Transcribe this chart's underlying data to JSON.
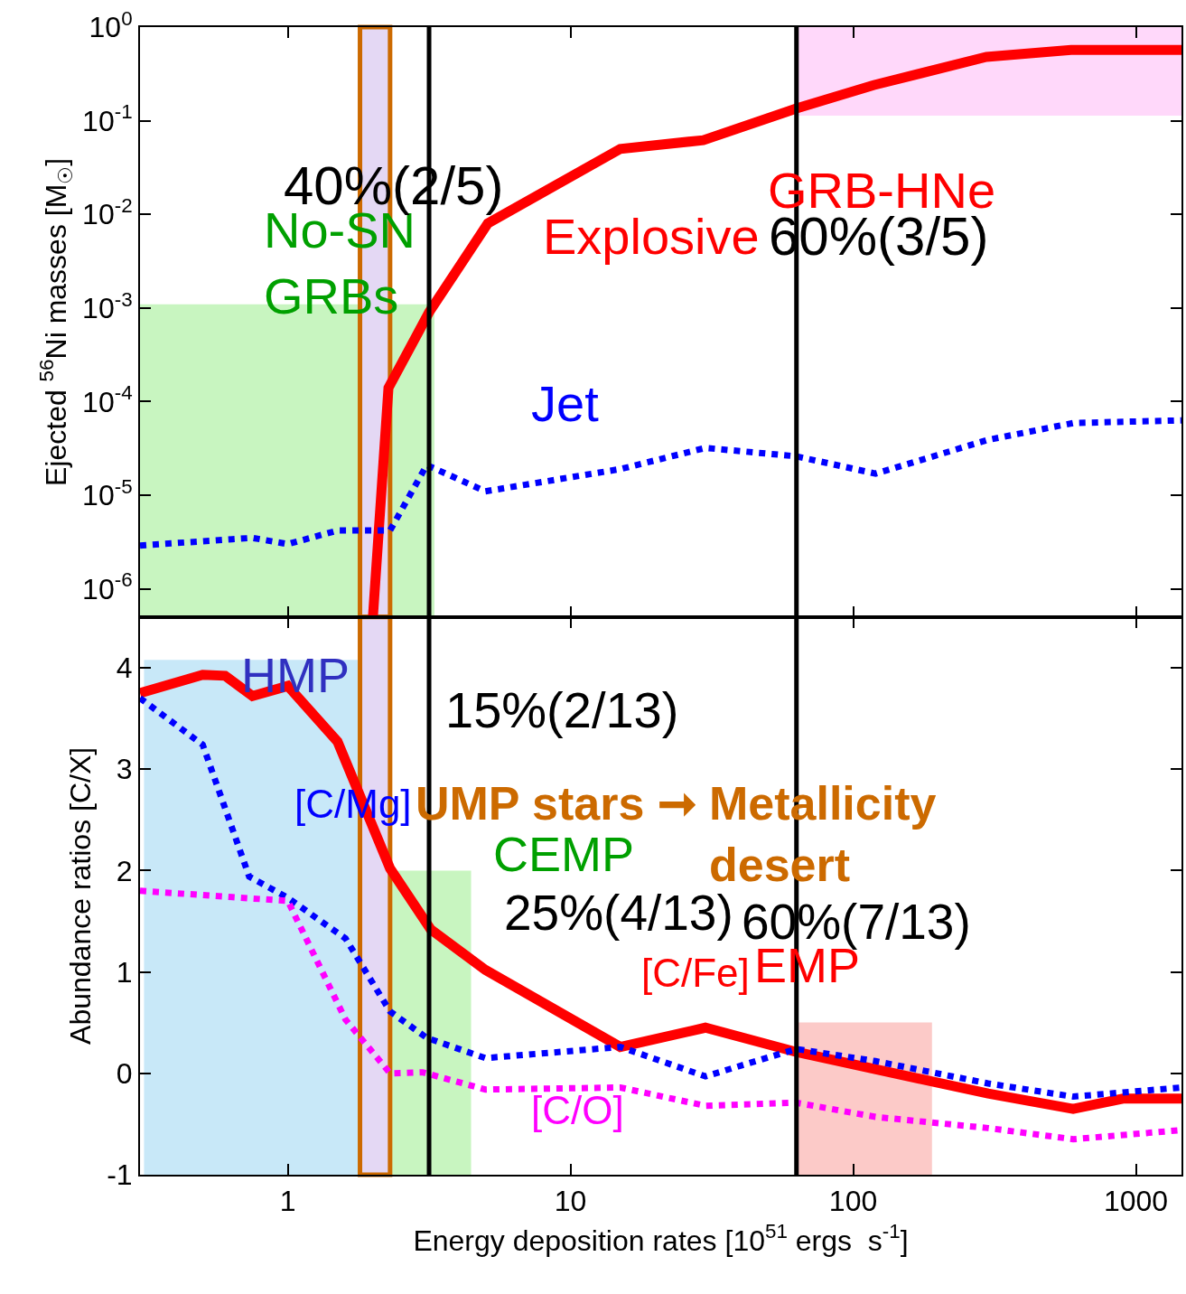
{
  "chart_data": [
    {
      "type": "line",
      "ylabel": "Ejected $^{56}$Ni masses [M$_{☉}$]",
      "log": "xy",
      "xlim": [
        0.3,
        1450
      ],
      "ylim": [
        5e-07,
        1
      ],
      "tick_labels": "y",
      "marker": "none",
      "xticks": [
        1,
        10,
        100,
        1000
      ],
      "yticks": [
        {
          "value": 1e-06,
          "label": "10$^{-6}$"
        },
        {
          "value": 1e-05,
          "label": "10$^{-5}$"
        },
        {
          "value": 0.0001,
          "label": "10$^{-4}$"
        },
        {
          "value": 0.001,
          "label": "10$^{-3}$"
        },
        {
          "value": 0.01,
          "label": "10$^{-2}$"
        },
        {
          "value": 0.1,
          "label": "10$^{-1}$"
        },
        {
          "value": 1,
          "label": "10$^{0}$"
        }
      ],
      "series": [
        {
          "name": "Explosive",
          "color": "#ff0000",
          "line_style": "solid",
          "x": [
            2.0,
            2.27,
            3.16,
            5.1,
            15,
            29.5,
            63,
            118,
            296,
            590,
            1450
          ],
          "values": [
            5e-07,
            0.00014,
            0.0009,
            0.008,
            0.05,
            0.062,
            0.135,
            0.24,
            0.48,
            0.57,
            0.57
          ]
        },
        {
          "name": "Jet",
          "color": "#0000ff",
          "line_style": "dotted",
          "x": [
            0.3,
            0.75,
            1.0,
            1.5,
            2.3,
            3.1,
            5,
            15,
            30,
            63,
            120,
            300,
            600,
            1450
          ],
          "values": [
            2.9e-06,
            3.5e-06,
            3e-06,
            4.2e-06,
            4.2e-06,
            2.1e-05,
            1.1e-05,
            1.9e-05,
            3.2e-05,
            2.6e-05,
            1.7e-05,
            3.9e-05,
            5.9e-05,
            6.3e-05
          ]
        }
      ],
      "ref_lines": [
        {
          "axis": "x",
          "value": 3.16,
          "color": "#000000"
        },
        {
          "axis": "x",
          "value": 63,
          "color": "#000000"
        }
      ],
      "bands": [
        {
          "axis": "x",
          "from": 0.3,
          "to": 3.3,
          "color": "#c8f5c0",
          "label": "No-SN\nGRBs"
        },
        {
          "axis": "x",
          "from": 63,
          "to": 1450,
          "color": "#ffd8fa",
          "label": "GRB-HNe"
        },
        {
          "axis": "x",
          "from": 1.8,
          "to": 2.3,
          "color": "#e4d8f4"
        }
      ],
      "annotations": [
        "40%(2/5)",
        "60%(3/5)"
      ]
    },
    {
      "type": "line",
      "xlabel": "Energy deposition rates [10$^{51}$ ergs  s$^{-1}$]",
      "ylabel": "Abundance ratios [C/X]",
      "log": "x",
      "xlim": [
        0.3,
        1450
      ],
      "ylim": [
        -1,
        4.5
      ],
      "marker": "none",
      "xticks": [
        1,
        10,
        100,
        1000
      ],
      "yticks": [
        -1,
        0,
        1,
        2,
        3,
        4
      ],
      "series": [
        {
          "name": "[C/Fe]",
          "color": "#ff0000",
          "line_style": "solid",
          "x": [
            0.3,
            0.5,
            0.6,
            0.75,
            1.0,
            1.5,
            2.3,
            3.2,
            5,
            15,
            30,
            63,
            300,
            600,
            900,
            1450
          ],
          "values": [
            3.75,
            3.93,
            3.92,
            3.72,
            3.82,
            3.27,
            2.02,
            1.42,
            1.02,
            0.26,
            0.45,
            0.21,
            -0.2,
            -0.35,
            -0.25,
            -0.25
          ]
        },
        {
          "name": "[C/Mg]",
          "color": "#0000ff",
          "line_style": "dotted",
          "x": [
            0.3,
            0.5,
            0.73,
            1.0,
            1.6,
            2.3,
            3.1,
            5,
            15,
            30,
            63,
            120,
            300,
            600,
            1450
          ],
          "values": [
            3.7,
            3.24,
            1.94,
            1.73,
            1.33,
            0.61,
            0.35,
            0.15,
            0.26,
            -0.03,
            0.24,
            0.12,
            -0.1,
            -0.23,
            -0.14
          ]
        },
        {
          "name": "[C/O]",
          "color": "#ff00ff",
          "line_style": "dotted",
          "x": [
            0.3,
            1.0,
            1.6,
            2.3,
            3.0,
            5,
            15,
            30,
            63,
            120,
            300,
            600,
            1450
          ],
          "values": [
            1.8,
            1.7,
            0.53,
            0.0,
            0.01,
            -0.16,
            -0.14,
            -0.32,
            -0.29,
            -0.43,
            -0.54,
            -0.65,
            -0.56
          ]
        }
      ],
      "ref_lines": [
        {
          "axis": "x",
          "value": 3.16,
          "color": "#000000"
        },
        {
          "axis": "x",
          "value": 63,
          "color": "#000000"
        }
      ],
      "bands": [
        {
          "axis": "x",
          "from": 0.31,
          "to": 1.82,
          "color": "#c8e8f8",
          "label": "HMP"
        },
        {
          "axis": "x",
          "from": 2.3,
          "to": 4.45,
          "color": "#c8f5c0",
          "label": "CEMP"
        },
        {
          "axis": "x",
          "from": 63,
          "to": 190,
          "color": "#fccac8",
          "label": "EMP"
        },
        {
          "axis": "x",
          "from": 1.8,
          "to": 2.3,
          "color": "#e4d8f4"
        }
      ],
      "annotations": [
        "15%(2/13)",
        "UMP stars ➞",
        "Metallicity\ndesert",
        "25%(4/13)",
        "60%(7/13)"
      ]
    }
  ]
}
